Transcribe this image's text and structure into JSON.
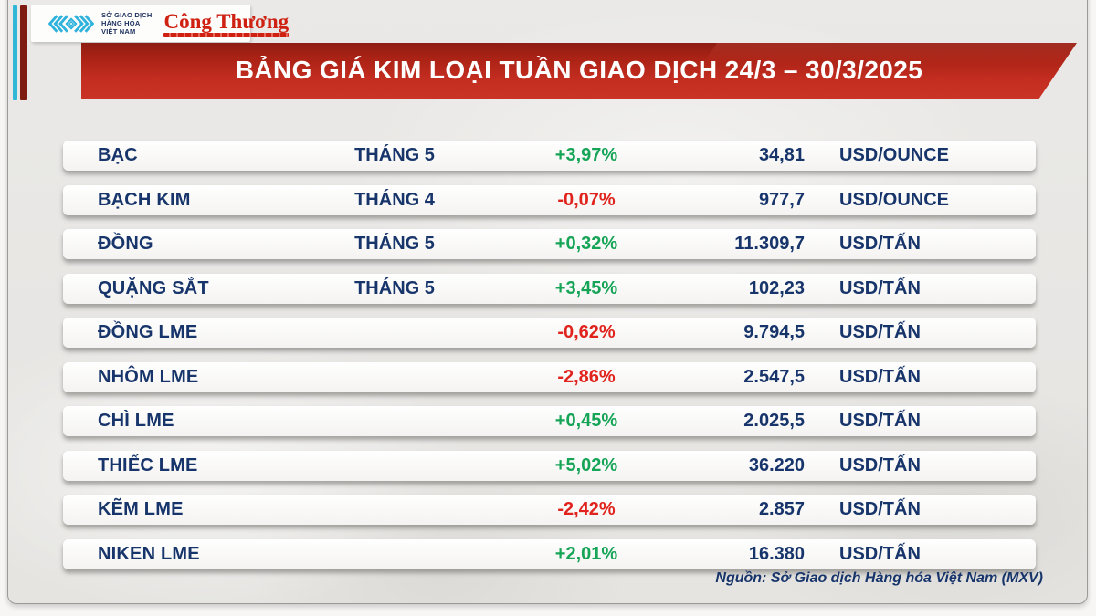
{
  "header": {
    "logo": {
      "mxv_name_lines": [
        "SỞ GIAO DỊCH",
        "HÀNG HÓA",
        "VIỆT NAM"
      ],
      "congthuong_label": "Công Thương"
    },
    "title": "BẢNG GIÁ KIM LOẠI TUẦN GIAO DỊCH 24/3 – 30/3/2025"
  },
  "colors": {
    "navy": "#17356b",
    "up-green": "#16a457",
    "down-red": "#e0231c",
    "banner-red": "#c22d20",
    "accent-cyan": "#30b7d8",
    "accent-maroon": "#7e1b12"
  },
  "chart_data": {
    "type": "table",
    "title": "BẢNG GIÁ KIM LOẠI TUẦN GIAO DỊCH 24/3 – 30/3/2025",
    "rows": [
      {
        "name": "BẠC",
        "month": "THÁNG 5",
        "change": "+3,97%",
        "direction": "up",
        "price": "34,81",
        "unit": "USD/OUNCE"
      },
      {
        "name": "BẠCH KIM",
        "month": "THÁNG 4",
        "change": "-0,07%",
        "direction": "down",
        "price": "977,7",
        "unit": "USD/OUNCE"
      },
      {
        "name": "ĐỒNG",
        "month": "THÁNG 5",
        "change": "+0,32%",
        "direction": "up",
        "price": "11.309,7",
        "unit": "USD/TẤN"
      },
      {
        "name": "QUẶNG SẮT",
        "month": "THÁNG 5",
        "change": "+3,45%",
        "direction": "up",
        "price": "102,23",
        "unit": "USD/TẤN"
      },
      {
        "name": "ĐỒNG LME",
        "month": "",
        "change": "-0,62%",
        "direction": "down",
        "price": "9.794,5",
        "unit": "USD/TẤN"
      },
      {
        "name": "NHÔM LME",
        "month": "",
        "change": "-2,86%",
        "direction": "down",
        "price": "2.547,5",
        "unit": "USD/TẤN"
      },
      {
        "name": "CHÌ LME",
        "month": "",
        "change": "+0,45%",
        "direction": "up",
        "price": "2.025,5",
        "unit": "USD/TẤN"
      },
      {
        "name": "THIẾC LME",
        "month": "",
        "change": "+5,02%",
        "direction": "up",
        "price": "36.220",
        "unit": "USD/TẤN"
      },
      {
        "name": "KẼM LME",
        "month": "",
        "change": "-2,42%",
        "direction": "down",
        "price": "2.857",
        "unit": "USD/TẤN"
      },
      {
        "name": "NIKEN LME",
        "month": "",
        "change": "+2,01%",
        "direction": "up",
        "price": "16.380",
        "unit": "USD/TẤN"
      }
    ]
  },
  "footer": {
    "source": "Nguồn: Sở Giao dịch Hàng hóa Việt Nam (MXV)"
  }
}
